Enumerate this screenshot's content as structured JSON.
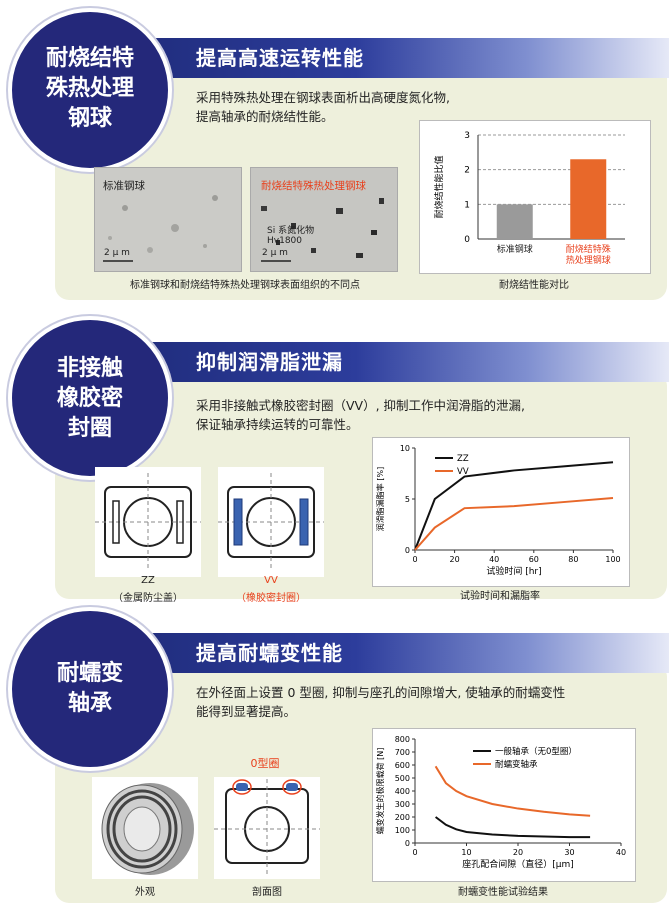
{
  "colors": {
    "navy": "#24287a",
    "panel": "#eef0dc",
    "accent_red": "#e8401c",
    "orange": "#e8682a"
  },
  "section1": {
    "circle_lines": [
      "耐烧结特",
      "殊热处理",
      "钢球"
    ],
    "banner": "提高高速运转性能",
    "desc_lines": [
      "采用特殊热处理在钢球表面析出高硬度氮化物,",
      "提高轴承的耐烧结性能。"
    ],
    "photo1_label": "标准钢球",
    "photo2_label": "耐烧结特殊热处理钢球",
    "photo2_note1": "Si 系氮化物",
    "photo2_note2": "Hv1800",
    "scale1": "2 μ m",
    "scale2": "2 μ m",
    "photos_caption": "标准钢球和耐烧结特殊热处理钢球表面组织的不同点",
    "chart_caption": "耐烧结性能对比"
  },
  "section2": {
    "circle_lines": [
      "非接触",
      "橡胶密",
      "封圈"
    ],
    "banner": "抑制润滑脂泄漏",
    "desc_lines": [
      "采用非接触式橡胶密封圈（VV）, 抑制工作中润滑脂的泄漏,",
      "保证轴承持续运转的可靠性。"
    ],
    "zz_label": "ZZ",
    "zz_sub": "（金属防尘盖）",
    "vv_label": "VV",
    "vv_sub": "（橡胶密封圈）",
    "chart_caption": "试验时间和漏脂率"
  },
  "section3": {
    "circle_lines": [
      "耐蠕变",
      "轴承"
    ],
    "banner": "提高耐蠕变性能",
    "desc_lines": [
      "在外径面上设置 0 型圈, 抑制与座孔的间隙增大, 使轴承的耐蠕变性",
      "能得到显著提高。"
    ],
    "oring_label": "0型圈",
    "photo_caption": "外观",
    "section_caption": "剖面图",
    "chart_caption": "耐蠕变性能试验结果"
  },
  "chart_data": [
    {
      "type": "bar",
      "categories": [
        "标准钢球",
        "耐烧结特殊热处理钢球"
      ],
      "category_lines": [
        [
          "标准钢球"
        ],
        [
          "耐烧结特殊",
          "热处理钢球"
        ]
      ],
      "values": [
        1.0,
        2.3
      ],
      "colors": [
        "#9a9a9a",
        "#e8682a"
      ],
      "ylabel": "耐烧结性能比值",
      "ylim": [
        0,
        3
      ],
      "yticks": [
        0,
        1,
        2,
        3
      ],
      "grid": true
    },
    {
      "type": "line",
      "xlabel": "试验时间 [hr]",
      "ylabel": "润滑脂漏脂率 [%]",
      "xlim": [
        0,
        100
      ],
      "ylim": [
        0,
        10
      ],
      "xticks": [
        0,
        20,
        40,
        60,
        80,
        100
      ],
      "yticks": [
        0,
        5,
        10
      ],
      "legend": "top-left",
      "series": [
        {
          "name": "ZZ",
          "color": "#111111",
          "x": [
            0,
            10,
            25,
            50,
            75,
            100
          ],
          "y": [
            0,
            5.0,
            7.2,
            7.8,
            8.2,
            8.6
          ]
        },
        {
          "name": "VV",
          "color": "#e8682a",
          "x": [
            0,
            10,
            25,
            50,
            75,
            100
          ],
          "y": [
            0,
            2.2,
            4.1,
            4.3,
            4.7,
            5.1
          ]
        }
      ]
    },
    {
      "type": "line",
      "xlabel": "座孔配合间隙（直径）[μm]",
      "ylabel": "蠕变发生的极限载荷 [N]",
      "xlim": [
        0,
        40
      ],
      "ylim": [
        0,
        800
      ],
      "xticks": [
        0,
        10,
        20,
        30,
        40
      ],
      "yticks": [
        0,
        100,
        200,
        300,
        400,
        500,
        600,
        700,
        800
      ],
      "legend": "top-right",
      "series": [
        {
          "name": "一般轴承（无0型圈）",
          "color": "#111111",
          "x": [
            4,
            6,
            8,
            10,
            15,
            20,
            25,
            30,
            34
          ],
          "y": [
            200,
            140,
            105,
            85,
            65,
            55,
            50,
            45,
            45
          ]
        },
        {
          "name": "耐蠕变轴承",
          "color": "#e8682a",
          "x": [
            4,
            6,
            8,
            10,
            15,
            20,
            25,
            30,
            34
          ],
          "y": [
            590,
            460,
            400,
            360,
            300,
            265,
            240,
            220,
            210
          ]
        }
      ]
    }
  ]
}
